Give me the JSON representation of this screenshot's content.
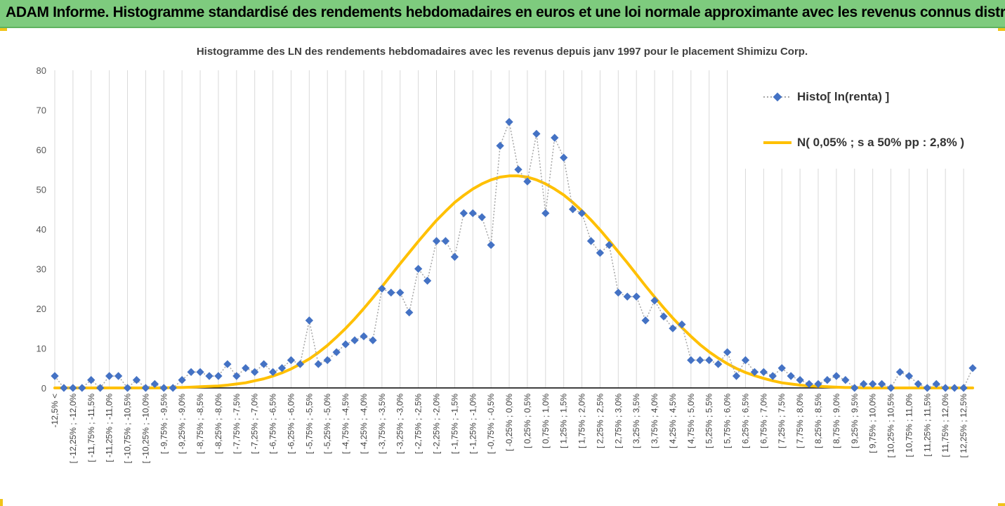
{
  "banner": {
    "title": "ADAM Informe. Histogramme standardisé des rendements hebdomadaires en euros et une loi normale approximante avec les revenus connus distribués"
  },
  "colors": {
    "banner": "#7ecb7e",
    "histo": "#4472c4",
    "normal": "#ffc000",
    "grid": "#d9d9d9",
    "connector": "#a6a6a6"
  },
  "legend": {
    "histo": "Histo[ ln(renta) ]",
    "normal": "N( 0,05% ; s a 50% pp : 2,8% )"
  },
  "chart_data": {
    "type": "line",
    "title": "Histogramme des LN des rendements hebdomadaires avec les revenus depuis janv 1997 pour le placement Shimizu Corp.",
    "xlabel": "",
    "ylabel": "",
    "ylim": [
      0,
      80
    ],
    "yticks": [
      0,
      10,
      20,
      30,
      40,
      50,
      60,
      70,
      80
    ],
    "grid": "vertical",
    "legend_position": "right",
    "categories": [
      "-12,5% <",
      "[ -12,5% ; -12,25%",
      "[ -12,25% ; -12,0%",
      "[ -12,0% ; -11,75%",
      "[ -11,75% ; -11,5%",
      "[ -11,5% ; -11,25%",
      "[ -11,25% ; -11,0%",
      "[ -11,0% ; -10,75%",
      "[ -10,75% ; -10,5%",
      "[ -10,5% ; -10,25%",
      "[ -10,25% ; -10,0%",
      "[ -10,0% ; -9,75%",
      "[ -9,75% ; -9,5%",
      "[ -9,5% ; -9,25%",
      "[ -9,25% ; -9,0%",
      "[ -9,0% ; -8,75%",
      "[ -8,75% ; -8,5%",
      "[ -8,5% ; -8,25%",
      "[ -8,25% ; -8,0%",
      "[ -8,0% ; -7,75%",
      "[ -7,75% ; -7,5%",
      "[ -7,5% ; -7,25%",
      "[ -7,25% ; -7,0%",
      "[ -7,0% ; -6,75%",
      "[ -6,75% ; -6,5%",
      "[ -6,5% ; -6,25%",
      "[ -6,25% ; -6,0%",
      "[ -6,0% ; -5,75%",
      "[ -5,75% ; -5,5%",
      "[ -5,5% ; -5,25%",
      "[ -5,25% ; -5,0%",
      "[ -5,0% ; -4,75%",
      "[ -4,75% ; -4,5%",
      "[ -4,5% ; -4,25%",
      "[ -4,25% ; -4,0%",
      "[ -4,0% ; -3,75%",
      "[ -3,75% ; -3,5%",
      "[ -3,5% ; -3,25%",
      "[ -3,25% ; -3,0%",
      "[ -3,0% ; -2,75%",
      "[ -2,75% ; -2,5%",
      "[ -2,5% ; -2,25%",
      "[ -2,25% ; -2,0%",
      "[ -2,0% ; -1,75%",
      "[ -1,75% ; -1,5%",
      "[ -1,5% ; -1,25%",
      "[ -1,25% ; -1,0%",
      "[ -1,0% ; -0,75%",
      "[ -0,75% ; -0,5%",
      "[ -0,5% ; -0,25%",
      "[ -0,25% ; 0,0%",
      "[ 0,0% ; 0,25%",
      "[ 0,25% ; 0,5%",
      "[ 0,5% ; 0,75%",
      "[ 0,75% ; 1,0%",
      "[ 1,0% ; 1,25%",
      "[ 1,25% ; 1,5%",
      "[ 1,5% ; 1,75%",
      "[ 1,75% ; 2,0%",
      "[ 2,0% ; 2,25%",
      "[ 2,25% ; 2,5%",
      "[ 2,5% ; 2,75%",
      "[ 2,75% ; 3,0%",
      "[ 3,0% ; 3,25%",
      "[ 3,25% ; 3,5%",
      "[ 3,5% ; 3,75%",
      "[ 3,75% ; 4,0%",
      "[ 4,0% ; 4,25%",
      "[ 4,25% ; 4,5%",
      "[ 4,5% ; 4,75%",
      "[ 4,75% ; 5,0%",
      "[ 5,0% ; 5,25%",
      "[ 5,25% ; 5,5%",
      "[ 5,5% ; 5,75%",
      "[ 5,75% ; 6,0%",
      "[ 6,0% ; 6,25%",
      "[ 6,25% ; 6,5%",
      "[ 6,5% ; 6,75%",
      "[ 6,75% ; 7,0%",
      "[ 7,0% ; 7,25%",
      "[ 7,25% ; 7,5%",
      "[ 7,5% ; 7,75%",
      "[ 7,75% ; 8,0%",
      "[ 8,0% ; 8,25%",
      "[ 8,25% ; 8,5%",
      "[ 8,5% ; 8,75%",
      "[ 8,75% ; 9,0%",
      "[ 9,0% ; 9,25%",
      "[ 9,25% ; 9,5%",
      "[ 9,5% ; 9,75%",
      "[ 9,75% ; 10,0%",
      "[ 10,0% ; 10,25%",
      "[ 10,25% ; 10,5%",
      "[ 10,5% ; 10,75%",
      "[ 10,75% ; 11,0%",
      "[ 11,0% ; 11,25%",
      "[ 11,25% ; 11,5%",
      "[ 11,5% ; 11,75%",
      "[ 11,75% ; 12,0%",
      "[ 12,0% ; 12,25%",
      "[ 12,25% ; 12,5%",
      "12,5% >"
    ],
    "visible_tick_labels": [
      "-12,5% <",
      "[ -12,25% ; -12,0%",
      "[ -11,75% ; -11,5%",
      "[ -11,25% ; -11,0%",
      "[ -10,75% ; -10,5%",
      "[ -10,25% ; -10,0%",
      "[ -9,75% ; -9,5%",
      "[ -9,25% ; -9,0%",
      "[ -8,75% ; -8,5%",
      "[ -8,25% ; -8,0%",
      "[ -7,75% ; -7,5%",
      "[ -7,25% ; -7,0%",
      "[ -6,75% ; -6,5%",
      "[ -6,25% ; -6,0%",
      "[ -5,75% ; -5,5%",
      "[ -5,25% ; -5,0%",
      "[ -4,75% ; -4,5%",
      "[ -4,25% ; -4,0%",
      "[ -3,75% ; -3,5%",
      "[ -3,25% ; -3,0%",
      "[ -2,75% ; -2,5%",
      "[ -2,25% ; -2,0%",
      "[ -1,75% ; -1,5%",
      "[ -1,25% ; -1,0%",
      "[ -0,75% ; -0,5%",
      "[ -0,25% ; 0,0%",
      "[ 0,25% ; 0,5%",
      "[ 0,75% ; 1,0%",
      "[ 1,25% ; 1,5%",
      "[ 1,75% ; 2,0%",
      "[ 2,25% ; 2,5%",
      "[ 2,75% ; 3,0%",
      "[ 3,25% ; 3,5%",
      "[ 3,75% ; 4,0%",
      "[ 4,25% ; 4,5%",
      "[ 4,75% ; 5,0%",
      "[ 5,25% ; 5,5%",
      "[ 5,75% ; 6,0%",
      "[ 6,25% ; 6,5%",
      "[ 6,75% ; 7,0%",
      "[ 7,25% ; 7,5%",
      "[ 7,75% ; 8,0%",
      "[ 8,25% ; 8,5%",
      "[ 8,75% ; 9,0%",
      "[ 9,25% ; 9,5%",
      "[ 9,75% ; 10,0%",
      "[ 10,25% ; 10,5%",
      "[ 10,75% ; 11,0%",
      "[ 11,25% ; 11,5%",
      "[ 11,75% ; 12,0%",
      "[ 12,25% ; 12,5%"
    ],
    "series": [
      {
        "name": "Histo[ ln(renta) ]",
        "style": "dotted line with diamond markers",
        "values": [
          3,
          0,
          0,
          0,
          2,
          0,
          3,
          3,
          0,
          2,
          0,
          1,
          0,
          0,
          2,
          4,
          4,
          3,
          3,
          6,
          3,
          5,
          4,
          6,
          4,
          5,
          7,
          6,
          17,
          6,
          7,
          9,
          11,
          12,
          13,
          12,
          25,
          24,
          24,
          19,
          30,
          27,
          37,
          37,
          33,
          44,
          44,
          43,
          36,
          61,
          67,
          55,
          52,
          64,
          44,
          63,
          58,
          45,
          44,
          37,
          34,
          36,
          24,
          23,
          23,
          17,
          22,
          18,
          15,
          16,
          7,
          7,
          7,
          6,
          9,
          3,
          7,
          4,
          4,
          3,
          5,
          3,
          2,
          1,
          1,
          2,
          3,
          2,
          0,
          1,
          1,
          1,
          0,
          4,
          3,
          1,
          0,
          1,
          0,
          0,
          0,
          5
        ]
      },
      {
        "name": "N( 0,05% ; s a 50% pp : 2,8% )",
        "style": "smooth solid line",
        "values": [
          0.0,
          0.0,
          0.0,
          0.0,
          0.0,
          0.0,
          0.0,
          0.0,
          0.0,
          0.0,
          0.0,
          0.0,
          0.0,
          0.1,
          0.1,
          0.2,
          0.3,
          0.4,
          0.5,
          0.7,
          1.0,
          1.3,
          1.8,
          2.3,
          3.0,
          3.8,
          4.8,
          6.0,
          7.3,
          8.9,
          10.7,
          12.8,
          15.0,
          17.4,
          20.0,
          22.7,
          25.5,
          28.4,
          31.3,
          34.1,
          36.9,
          39.6,
          42.2,
          44.5,
          46.7,
          48.5,
          50.1,
          51.4,
          52.4,
          53.1,
          53.4,
          53.4,
          53.1,
          52.4,
          51.4,
          50.1,
          48.6,
          46.7,
          44.6,
          42.3,
          39.8,
          37.1,
          34.3,
          31.5,
          28.6,
          25.7,
          22.9,
          20.2,
          17.6,
          15.2,
          13.0,
          10.9,
          9.1,
          7.5,
          6.1,
          4.9,
          3.9,
          3.1,
          2.4,
          1.8,
          1.3,
          1.0,
          0.7,
          0.5,
          0.4,
          0.3,
          0.2,
          0.1,
          0.1,
          0.0,
          0.0,
          0.0,
          0.0,
          0.0,
          0.0,
          0.0,
          0.0,
          0.0,
          0.0,
          0.0,
          0.0,
          0.0
        ]
      }
    ]
  }
}
